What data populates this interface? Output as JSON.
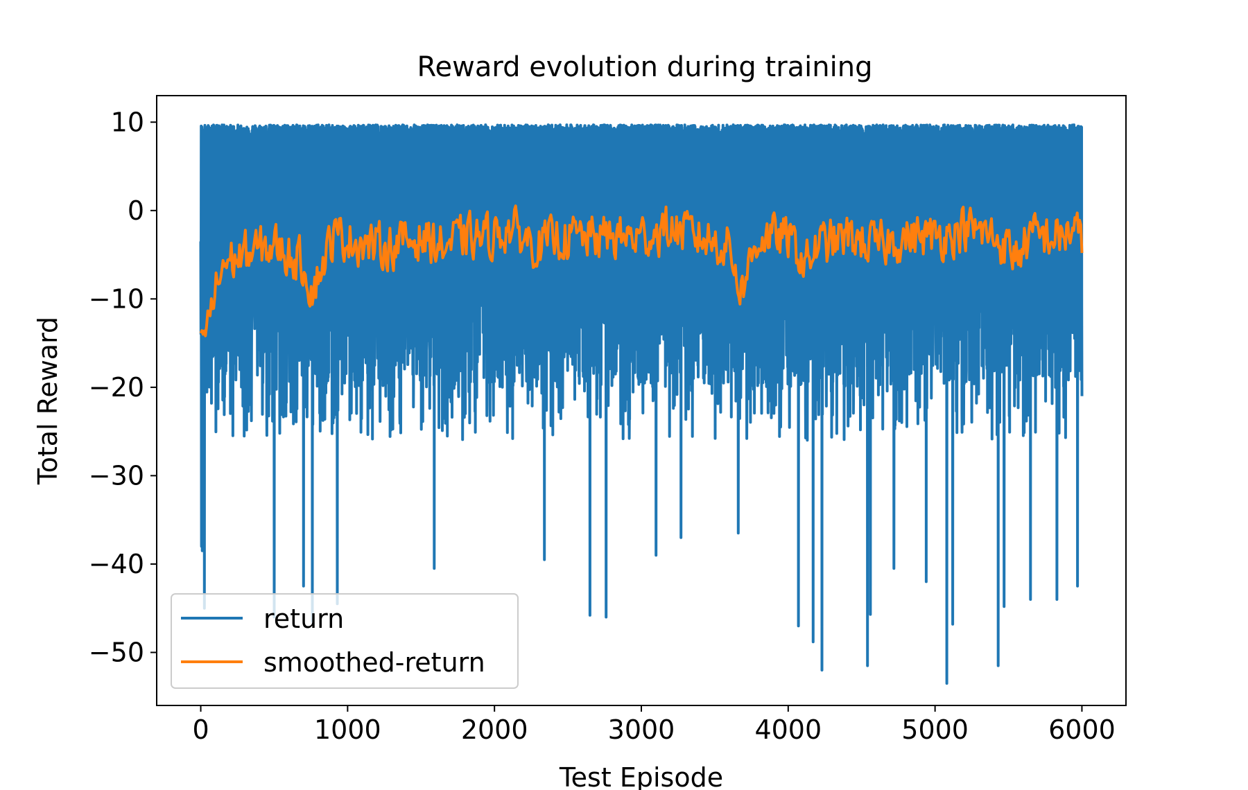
{
  "chart_data": {
    "type": "line",
    "title": "Reward evolution during training",
    "xlabel": "Test Episode",
    "ylabel": "Total Reward",
    "xlim": [
      -300,
      6300
    ],
    "ylim": [
      -56,
      13
    ],
    "xticks": [
      0,
      1000,
      2000,
      3000,
      4000,
      5000,
      6000
    ],
    "xtick_labels": [
      "0",
      "1000",
      "2000",
      "3000",
      "4000",
      "5000",
      "6000"
    ],
    "yticks": [
      10,
      0,
      -10,
      -20,
      -30,
      -40,
      -50
    ],
    "ytick_labels": [
      "10",
      "0",
      "−10",
      "−20",
      "−30",
      "−40",
      "−50"
    ],
    "grid": false,
    "legend_position": "lower-left",
    "series": [
      {
        "name": "return",
        "color": "#1f77b4",
        "x_range": [
          0,
          6000
        ],
        "y_min": -53.5,
        "y_max": 10,
        "extreme_lows": [
          {
            "x": 10,
            "y": -38.5
          },
          {
            "x": 25,
            "y": -45
          },
          {
            "x": 500,
            "y": -46
          },
          {
            "x": 700,
            "y": -42.5
          },
          {
            "x": 760,
            "y": -46.5
          },
          {
            "x": 930,
            "y": -44.5
          },
          {
            "x": 1590,
            "y": -40.5
          },
          {
            "x": 2340,
            "y": -39.5
          },
          {
            "x": 2650,
            "y": -45.8
          },
          {
            "x": 2760,
            "y": -46
          },
          {
            "x": 3100,
            "y": -39
          },
          {
            "x": 3270,
            "y": -37
          },
          {
            "x": 3660,
            "y": -36.5
          },
          {
            "x": 4070,
            "y": -47
          },
          {
            "x": 4170,
            "y": -48.8
          },
          {
            "x": 4230,
            "y": -52
          },
          {
            "x": 4540,
            "y": -51.5
          },
          {
            "x": 4560,
            "y": -45.7
          },
          {
            "x": 4720,
            "y": -40.5
          },
          {
            "x": 4940,
            "y": -42
          },
          {
            "x": 5080,
            "y": -53.5
          },
          {
            "x": 5120,
            "y": -46.8
          },
          {
            "x": 5430,
            "y": -51.5
          },
          {
            "x": 5470,
            "y": -44.8
          },
          {
            "x": 5650,
            "y": -44
          },
          {
            "x": 5830,
            "y": -44
          },
          {
            "x": 5970,
            "y": -42.5
          }
        ]
      },
      {
        "name": "smoothed-return",
        "color": "#ff7f0e",
        "x": [
          0,
          60,
          150,
          300,
          500,
          700,
          760,
          900,
          1000,
          1150,
          1300,
          1500,
          1650,
          1800,
          1950,
          2100,
          2300,
          2450,
          2600,
          2800,
          3000,
          3200,
          3400,
          3600,
          3680,
          3800,
          4000,
          4120,
          4200,
          4400,
          4600,
          4800,
          5000,
          5200,
          5400,
          5550,
          5650,
          5750,
          5850,
          5950,
          6000
        ],
        "y": [
          -14,
          -12,
          -6,
          -5,
          -4,
          -6,
          -9,
          -3,
          -3,
          -4,
          -4,
          -3,
          -4,
          -3,
          -3,
          -2,
          -4,
          -3,
          -3,
          -3,
          -3,
          -2,
          -3,
          -4,
          -9,
          -3,
          -3,
          -6,
          -4,
          -3,
          -4,
          -3,
          -3,
          -2,
          -3,
          -5,
          -3,
          -3,
          -3,
          -2,
          -4
        ],
        "noise_amplitude": 3.5,
        "min": -14.5,
        "max": 4
      }
    ]
  }
}
